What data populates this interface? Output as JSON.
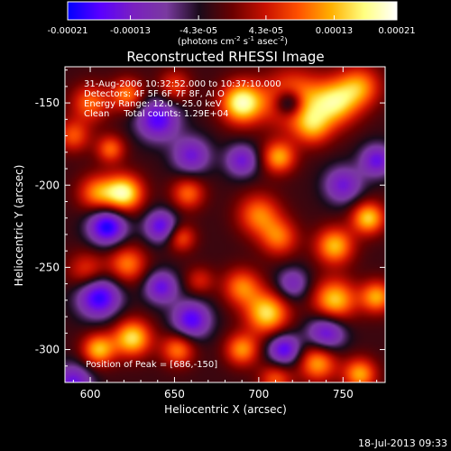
{
  "colorbar": {
    "tick_labels": [
      "-0.00021",
      "-0.00013",
      "-4.3e-05",
      "4.3e-05",
      "0.00013",
      "0.00021"
    ],
    "tick_values": [
      -0.00021,
      -0.00013,
      -4.3e-05,
      4.3e-05,
      0.00013,
      0.00021
    ],
    "range": [
      -0.00021,
      0.00021
    ],
    "unit_label": "(photons cm",
    "unit_sup1": "-2",
    "unit_mid": " s",
    "unit_sup2": "-1",
    "unit_mid2": " asec",
    "unit_sup3": "-2",
    "unit_end": ")",
    "colors": [
      "#0000ff",
      "#5a00ff",
      "#7a20c0",
      "#7a3aa0",
      "#1a0a1a",
      "#6a0000",
      "#c81000",
      "#ff5000",
      "#ffb000",
      "#ffff80",
      "#ffffff"
    ]
  },
  "chart_data": {
    "type": "heatmap",
    "title": "Reconstructed RHESSI Image",
    "xlabel": "Heliocentric X (arcsec)",
    "ylabel": "Heliocentric Y (arcsec)",
    "xlim": [
      585,
      775
    ],
    "ylim": [
      -320,
      -128
    ],
    "xticks": [
      600,
      650,
      700,
      750
    ],
    "yticks": [
      -150,
      -200,
      -250,
      -300
    ],
    "xtick_labels": [
      "600",
      "650",
      "700",
      "750"
    ],
    "ytick_labels": [
      "-150",
      "-200",
      "-250",
      "-300"
    ],
    "info_lines": [
      "31-Aug-2006 10:32:52.000 to 10:37:10.000",
      "Detectors: 4F 5F 6F 7F 8F, AI O",
      "Energy Range: 12.0 - 25.0 keV",
      "Clean     Total counts: 1.29E+04"
    ],
    "peak_label": "Position of Peak = [686,-150]",
    "peak": [
      686,
      -150
    ],
    "blobs": [
      {
        "x": 690,
        "y": -150,
        "v": 1.0,
        "s": 9
      },
      {
        "x": 720,
        "y": -148,
        "v": 0.75,
        "s": 12
      },
      {
        "x": 745,
        "y": -150,
        "v": 0.8,
        "s": 10
      },
      {
        "x": 760,
        "y": -140,
        "v": 0.6,
        "s": 9
      },
      {
        "x": 712,
        "y": -183,
        "v": 0.7,
        "s": 7
      },
      {
        "x": 732,
        "y": -165,
        "v": 0.55,
        "s": 8
      },
      {
        "x": 620,
        "y": -205,
        "v": 0.95,
        "s": 8
      },
      {
        "x": 604,
        "y": -205,
        "v": 0.6,
        "s": 8
      },
      {
        "x": 658,
        "y": -205,
        "v": 0.55,
        "s": 7
      },
      {
        "x": 600,
        "y": -150,
        "v": 0.55,
        "s": 8
      },
      {
        "x": 622,
        "y": -145,
        "v": 0.6,
        "s": 7
      },
      {
        "x": 590,
        "y": -170,
        "v": 0.5,
        "s": 7
      },
      {
        "x": 612,
        "y": -178,
        "v": 0.55,
        "s": 6
      },
      {
        "x": 650,
        "y": -140,
        "v": 0.45,
        "s": 7
      },
      {
        "x": 700,
        "y": -218,
        "v": 0.6,
        "s": 9
      },
      {
        "x": 712,
        "y": -232,
        "v": 0.55,
        "s": 8
      },
      {
        "x": 765,
        "y": -220,
        "v": 0.8,
        "s": 7
      },
      {
        "x": 745,
        "y": -237,
        "v": 0.75,
        "s": 8
      },
      {
        "x": 622,
        "y": -248,
        "v": 0.6,
        "s": 8
      },
      {
        "x": 598,
        "y": -252,
        "v": 0.45,
        "s": 8
      },
      {
        "x": 654,
        "y": -232,
        "v": 0.5,
        "s": 6
      },
      {
        "x": 665,
        "y": -258,
        "v": 0.35,
        "s": 6
      },
      {
        "x": 690,
        "y": -262,
        "v": 0.6,
        "s": 8
      },
      {
        "x": 705,
        "y": -278,
        "v": 0.85,
        "s": 9
      },
      {
        "x": 745,
        "y": -270,
        "v": 0.8,
        "s": 9
      },
      {
        "x": 770,
        "y": -268,
        "v": 0.7,
        "s": 7
      },
      {
        "x": 690,
        "y": -300,
        "v": 0.65,
        "s": 7
      },
      {
        "x": 625,
        "y": -293,
        "v": 0.85,
        "s": 8
      },
      {
        "x": 605,
        "y": -300,
        "v": 0.75,
        "s": 7
      },
      {
        "x": 652,
        "y": -300,
        "v": 0.6,
        "s": 7
      },
      {
        "x": 735,
        "y": -308,
        "v": 0.7,
        "s": 8
      },
      {
        "x": 760,
        "y": -315,
        "v": 0.7,
        "s": 7
      },
      {
        "x": 710,
        "y": -318,
        "v": 0.5,
        "s": 7
      },
      {
        "x": 640,
        "y": -160,
        "v": -0.7,
        "s": 9
      },
      {
        "x": 610,
        "y": -225,
        "v": -0.85,
        "s": 8
      },
      {
        "x": 642,
        "y": -225,
        "v": -0.65,
        "s": 7
      },
      {
        "x": 660,
        "y": -182,
        "v": -0.55,
        "s": 8
      },
      {
        "x": 690,
        "y": -185,
        "v": -0.55,
        "s": 7
      },
      {
        "x": 718,
        "y": -150,
        "v": -0.8,
        "s": 6
      },
      {
        "x": 605,
        "y": -268,
        "v": -0.8,
        "s": 9
      },
      {
        "x": 642,
        "y": -262,
        "v": -0.6,
        "s": 7
      },
      {
        "x": 660,
        "y": -282,
        "v": -0.7,
        "s": 8
      },
      {
        "x": 720,
        "y": -260,
        "v": -0.45,
        "s": 7
      },
      {
        "x": 715,
        "y": -300,
        "v": -0.7,
        "s": 7
      },
      {
        "x": 740,
        "y": -290,
        "v": -0.65,
        "s": 8
      },
      {
        "x": 750,
        "y": -200,
        "v": -0.55,
        "s": 8
      },
      {
        "x": 770,
        "y": -185,
        "v": -0.6,
        "s": 7
      },
      {
        "x": 590,
        "y": -320,
        "v": -0.6,
        "s": 8
      }
    ]
  },
  "timestamp": "18-Jul-2013 09:33"
}
